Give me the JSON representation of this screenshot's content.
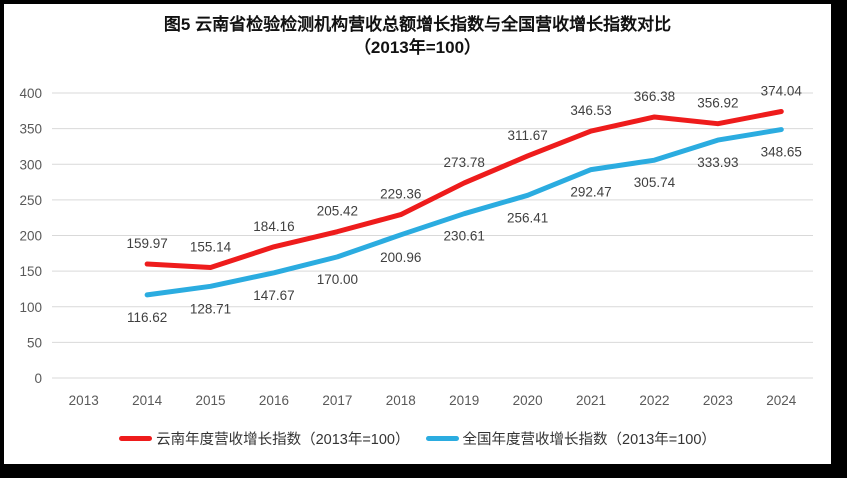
{
  "chart_data": {
    "type": "line",
    "title": "图5  云南省检验检测机构营收总额增长指数与全国营收增长指数对比",
    "subtitle": "（2013年=100）",
    "categories": [
      "2013",
      "2014",
      "2015",
      "2016",
      "2017",
      "2018",
      "2019",
      "2020",
      "2021",
      "2022",
      "2023",
      "2024"
    ],
    "series": [
      {
        "name": "云南年度营收增长指数（2013年=100）",
        "color": "#ee1c1c",
        "start_index": 1,
        "label_position": "above",
        "values": [
          159.97,
          155.14,
          184.16,
          205.42,
          229.36,
          273.78,
          311.67,
          346.53,
          366.38,
          356.92,
          374.04
        ]
      },
      {
        "name": "全国年度营收增长指数（2013年=100）",
        "color": "#2bace0",
        "start_index": 1,
        "label_position": "below",
        "values": [
          116.62,
          128.71,
          147.67,
          170.0,
          200.96,
          230.61,
          256.41,
          292.47,
          305.74,
          333.93,
          348.65
        ]
      }
    ],
    "xlabel": "",
    "ylabel": "",
    "ylim": [
      0,
      400
    ],
    "ytick_step": 50,
    "grid": true,
    "gridline_color": "#d9d9d9",
    "tick_label_color": "#595959",
    "data_label_color": "#404040",
    "legend_position": "bottom"
  }
}
